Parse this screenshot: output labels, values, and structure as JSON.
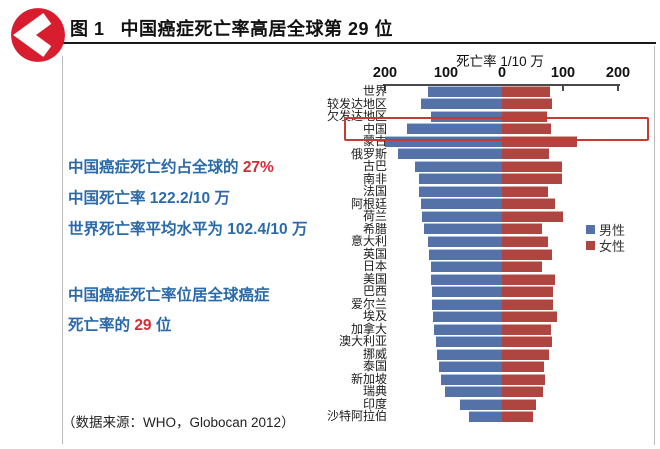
{
  "header": {
    "figure_label": "图 1",
    "title": "中国癌症死亡率高居全球第 29 位"
  },
  "annotations": {
    "block1_line1_prefix": "中国癌症死亡约占全球的 ",
    "block1_line1_highlight": "27%",
    "block1_line2": "中国死亡率 122.2/10 万",
    "block1_line3": "世界死亡率平均水平为 102.4/10 万",
    "block2_line1": "中国癌症死亡率位居全球癌症",
    "block2_line2_prefix": "死亡率的 ",
    "block2_line2_highlight": "29",
    "block2_line2_suffix": " 位",
    "source": "（数据来源：WHO，Globocan 2012）"
  },
  "chart_data": {
    "type": "bar",
    "orientation": "horizontal-diverging",
    "title": "死亡率 1/10 万",
    "axis_ticks": [
      "200",
      "100",
      "0",
      "100",
      "200"
    ],
    "xlim": [
      -200,
      200
    ],
    "grid": false,
    "legend_position": "right",
    "highlighted_category": "中国",
    "categories": [
      "世界",
      "较发达地区",
      "欠发达地区",
      "中国",
      "蒙古",
      "俄罗斯",
      "古巴",
      "南非",
      "法国",
      "阿根廷",
      "荷兰",
      "希腊",
      "意大利",
      "英国",
      "日本",
      "美国",
      "巴西",
      "爱尔兰",
      "埃及",
      "加拿大",
      "澳大利亚",
      "挪威",
      "泰国",
      "新加坡",
      "瑞典",
      "印度",
      "沙特阿拉伯"
    ],
    "series": [
      {
        "name": "男性",
        "color": "#5471a8",
        "values": [
          126,
          138,
          120,
          161,
          198,
          176,
          147,
          140,
          140,
          138,
          136,
          132,
          126,
          123,
          121,
          120,
          119,
          118,
          117,
          115,
          112,
          110,
          106,
          103,
          96,
          72,
          56
        ]
      },
      {
        "name": "女性",
        "color": "#ae4540",
        "values": [
          82,
          84,
          76,
          83,
          127,
          79,
          101,
          101,
          78,
          90,
          103,
          68,
          78,
          85,
          68,
          89,
          86,
          86,
          93,
          83,
          85,
          80,
          72,
          73,
          69,
          57,
          52
        ]
      }
    ]
  },
  "colors": {
    "male_bar": "#5471a8",
    "female_bar": "#ae4540",
    "annotation_blue": "#2b6aa9",
    "accent_red": "#d62b35",
    "highlight_box": "#c23b35",
    "logo_red": "#d81e2e"
  }
}
